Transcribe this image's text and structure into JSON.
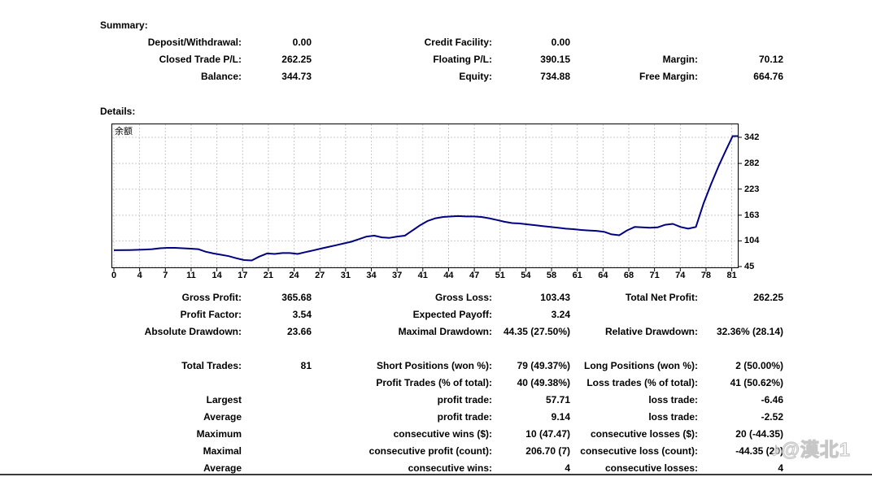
{
  "summary": {
    "title": "Summary:",
    "rows": [
      {
        "c1l": "Deposit/Withdrawal:",
        "c1v": "0.00",
        "c2l": "Credit Facility:",
        "c2v": "0.00",
        "c3l": "",
        "c3v": ""
      },
      {
        "c1l": "Closed Trade P/L:",
        "c1v": "262.25",
        "c2l": "Floating P/L:",
        "c2v": "390.15",
        "c3l": "Margin:",
        "c3v": "70.12"
      },
      {
        "c1l": "Balance:",
        "c1v": "344.73",
        "c2l": "Equity:",
        "c2v": "734.88",
        "c3l": "Free Margin:",
        "c3v": "664.76"
      }
    ]
  },
  "details": {
    "title": "Details:"
  },
  "chart_data": {
    "type": "line",
    "title": "",
    "legend": "余额",
    "line_color": "#000080",
    "grid_color": "#c8c8c8",
    "grid": "dashed",
    "xlabel": "",
    "ylabel": "",
    "x_ticks": [
      "0",
      "4",
      "7",
      "11",
      "14",
      "17",
      "21",
      "24",
      "27",
      "31",
      "34",
      "37",
      "41",
      "44",
      "47",
      "51",
      "54",
      "58",
      "61",
      "64",
      "68",
      "71",
      "74",
      "78",
      "81"
    ],
    "y_ticks": [
      342,
      282,
      223,
      163,
      104,
      45
    ],
    "x_range": [
      0,
      81.6
    ],
    "y_axis_side": "right",
    "points": [
      [
        0,
        82.5
      ],
      [
        2,
        83
      ],
      [
        4,
        84
      ],
      [
        5,
        85
      ],
      [
        6,
        87
      ],
      [
        7,
        88
      ],
      [
        8,
        88
      ],
      [
        9,
        87
      ],
      [
        10,
        86
      ],
      [
        11,
        85
      ],
      [
        12,
        79
      ],
      [
        13,
        75
      ],
      [
        14,
        72
      ],
      [
        15,
        69
      ],
      [
        16,
        64
      ],
      [
        17,
        60
      ],
      [
        18,
        59
      ],
      [
        19,
        68
      ],
      [
        20,
        75
      ],
      [
        21,
        74
      ],
      [
        22,
        76
      ],
      [
        23,
        76
      ],
      [
        24,
        74
      ],
      [
        25,
        78
      ],
      [
        26,
        82
      ],
      [
        27,
        86
      ],
      [
        28,
        90
      ],
      [
        29,
        94
      ],
      [
        30,
        98
      ],
      [
        31,
        102
      ],
      [
        32,
        108
      ],
      [
        33,
        114
      ],
      [
        34,
        116
      ],
      [
        35,
        112
      ],
      [
        36,
        111
      ],
      [
        37,
        114
      ],
      [
        38,
        116
      ],
      [
        39,
        128
      ],
      [
        40,
        140
      ],
      [
        41,
        150
      ],
      [
        42,
        156
      ],
      [
        43,
        159
      ],
      [
        44,
        160
      ],
      [
        45,
        161
      ],
      [
        46,
        160
      ],
      [
        47,
        160
      ],
      [
        48,
        159
      ],
      [
        49,
        156
      ],
      [
        50,
        152
      ],
      [
        51,
        148
      ],
      [
        52,
        145
      ],
      [
        53,
        144
      ],
      [
        54,
        142
      ],
      [
        55,
        140
      ],
      [
        56,
        138
      ],
      [
        57,
        136
      ],
      [
        58,
        134
      ],
      [
        59,
        132
      ],
      [
        60,
        131
      ],
      [
        61,
        129
      ],
      [
        62,
        128
      ],
      [
        63,
        127
      ],
      [
        64,
        125
      ],
      [
        65,
        119
      ],
      [
        66,
        117
      ],
      [
        67,
        128
      ],
      [
        68,
        136
      ],
      [
        69,
        135
      ],
      [
        70,
        134
      ],
      [
        71,
        135
      ],
      [
        72,
        141
      ],
      [
        73,
        143
      ],
      [
        74,
        136
      ],
      [
        75,
        132
      ],
      [
        76,
        136
      ],
      [
        77,
        190
      ],
      [
        78,
        235
      ],
      [
        79,
        277
      ],
      [
        80,
        315
      ],
      [
        80.8,
        344.7
      ],
      [
        81.6,
        344.7
      ]
    ]
  },
  "stats": {
    "rows": [
      {
        "c1l": "Gross Profit:",
        "c1v": "365.68",
        "c2l": "Gross Loss:",
        "c2v": "103.43",
        "c3l": "Total Net Profit:",
        "c3v": "262.25"
      },
      {
        "c1l": "Profit Factor:",
        "c1v": "3.54",
        "c2l": "Expected Payoff:",
        "c2v": "3.24",
        "c3l": "",
        "c3v": ""
      },
      {
        "c1l": "Absolute Drawdown:",
        "c1v": "23.66",
        "c2l": "Maximal Drawdown:",
        "c2v": "44.35 (27.50%)",
        "c3l": "Relative Drawdown:",
        "c3v": "32.36% (28.14)"
      }
    ]
  },
  "trades": {
    "rows": [
      {
        "c1l": "Total Trades:",
        "c1v": "81",
        "c2l": "Short Positions (won %):",
        "c2v": "79 (49.37%)",
        "c3l": "Long Positions (won %):",
        "c3v": "2 (50.00%)"
      },
      {
        "c1l": "",
        "c1v": "",
        "c2l": "Profit Trades (% of total):",
        "c2v": "40 (49.38%)",
        "c3l": "Loss trades (% of total):",
        "c3v": "41 (50.62%)"
      },
      {
        "c1l": "Largest",
        "c1v": "",
        "c2l": "profit trade:",
        "c2v": "57.71",
        "c3l": "loss trade:",
        "c3v": "-6.46"
      },
      {
        "c1l": "Average",
        "c1v": "",
        "c2l": "profit trade:",
        "c2v": "9.14",
        "c3l": "loss trade:",
        "c3v": "-2.52"
      },
      {
        "c1l": "Maximum",
        "c1v": "",
        "c2l": "consecutive wins ($):",
        "c2v": "10 (47.47)",
        "c3l": "consecutive losses ($):",
        "c3v": "20 (-44.35)"
      },
      {
        "c1l": "Maximal",
        "c1v": "",
        "c2l": "consecutive profit (count):",
        "c2v": "206.70 (7)",
        "c3l": "consecutive loss (count):",
        "c3v": "-44.35 (20)"
      },
      {
        "c1l": "Average",
        "c1v": "",
        "c2l": "consecutive wins:",
        "c2v": "4",
        "c3l": "consecutive losses:",
        "c3v": "4"
      }
    ]
  },
  "watermark": {
    "icon": "♪",
    "text": "@漠北1"
  }
}
